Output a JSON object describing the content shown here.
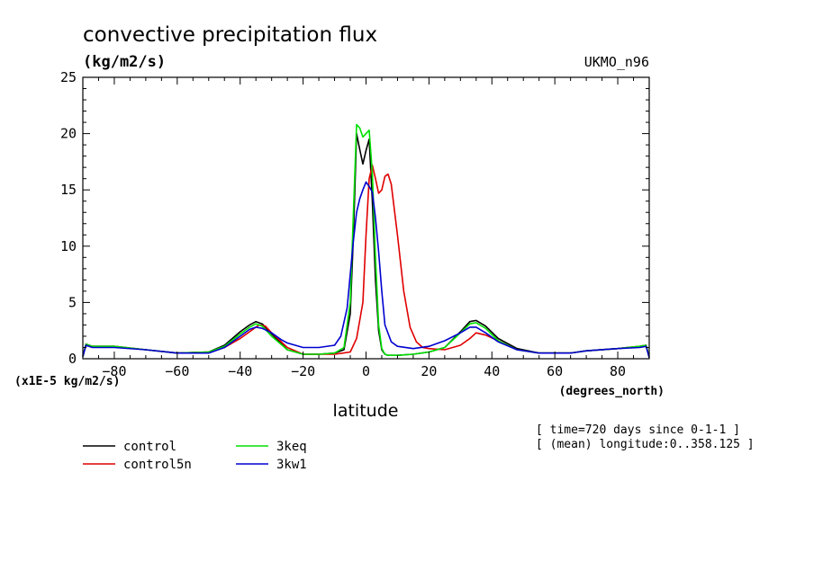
{
  "title": "convective precipitation flux",
  "units": "(kg/m2/s)",
  "model_label": "UKMO_n96",
  "scale_note": "(x1E-5 kg/m2/s)",
  "axis_units_x": "(degrees_north)",
  "xlabel": "latitude",
  "info_lines": [
    "[ time=720 days since 0-1-1 ]",
    "[ (mean) longitude:0..358.125 ]"
  ],
  "colors": {
    "control": "#000000",
    "control5n": "#e00000",
    "3keq": "#00e000",
    "3kw1": "#0000d0"
  },
  "chart_data": {
    "type": "line",
    "xlim": [
      -90,
      90
    ],
    "ylim": [
      0,
      25
    ],
    "xticks": [
      -80,
      -60,
      -40,
      -20,
      0,
      20,
      40,
      60,
      80
    ],
    "yticks": [
      0,
      5,
      10,
      15,
      20,
      25
    ],
    "legend_placement": "bottom-left",
    "series": [
      {
        "name": "control",
        "x": [
          -90,
          -89,
          -87,
          -80,
          -70,
          -60,
          -50,
          -45,
          -40,
          -37,
          -35,
          -33,
          -30,
          -25,
          -20,
          -15,
          -10,
          -7,
          -5,
          -4,
          -3,
          -2,
          -1,
          0,
          1,
          2,
          3,
          4,
          5,
          6,
          7,
          8,
          10,
          15,
          20,
          25,
          30,
          33,
          35,
          38,
          42,
          48,
          55,
          60,
          65,
          70,
          80,
          87,
          89,
          90
        ],
        "y": [
          0.2,
          1.3,
          1.1,
          1.1,
          0.8,
          0.5,
          0.6,
          1.2,
          2.4,
          3.0,
          3.3,
          3.1,
          2.2,
          0.8,
          0.4,
          0.4,
          0.5,
          0.8,
          4.0,
          11.0,
          20.0,
          18.6,
          17.3,
          18.5,
          19.5,
          14.0,
          7.0,
          2.5,
          0.8,
          0.4,
          0.3,
          0.3,
          0.3,
          0.4,
          0.6,
          1.0,
          2.4,
          3.3,
          3.4,
          2.9,
          1.8,
          0.9,
          0.5,
          0.5,
          0.5,
          0.7,
          0.9,
          1.1,
          1.2,
          0.1
        ]
      },
      {
        "name": "control5n",
        "x": [
          -90,
          -89,
          -87,
          -80,
          -70,
          -60,
          -50,
          -45,
          -40,
          -37,
          -34,
          -32,
          -30,
          -25,
          -20,
          -15,
          -10,
          -5,
          -3,
          -1,
          0,
          1,
          2,
          3,
          4,
          5,
          6,
          7,
          8,
          10,
          12,
          14,
          16,
          18,
          20,
          25,
          30,
          33,
          35,
          38,
          42,
          48,
          55,
          60,
          65,
          70,
          80,
          87,
          89,
          90
        ],
        "y": [
          0.2,
          1.3,
          1.1,
          1.1,
          0.8,
          0.5,
          0.6,
          1.0,
          1.8,
          2.4,
          3.0,
          2.9,
          2.3,
          1.0,
          0.4,
          0.4,
          0.4,
          0.6,
          1.8,
          5.0,
          11.0,
          16.0,
          17.2,
          16.0,
          14.7,
          15.0,
          16.2,
          16.4,
          15.5,
          11.0,
          6.0,
          2.8,
          1.5,
          1.0,
          0.9,
          0.8,
          1.2,
          1.8,
          2.3,
          2.1,
          1.6,
          0.8,
          0.5,
          0.5,
          0.5,
          0.7,
          0.9,
          1.1,
          1.2,
          0.1
        ]
      },
      {
        "name": "3keq",
        "x": [
          -90,
          -89,
          -87,
          -80,
          -70,
          -60,
          -50,
          -45,
          -40,
          -37,
          -35,
          -33,
          -30,
          -25,
          -20,
          -15,
          -10,
          -7,
          -5,
          -4,
          -3,
          -2,
          -1,
          0,
          1,
          2,
          3,
          4,
          5,
          6,
          7,
          8,
          10,
          15,
          20,
          25,
          30,
          33,
          35,
          38,
          42,
          48,
          55,
          60,
          65,
          70,
          80,
          87,
          89,
          90
        ],
        "y": [
          0.2,
          1.3,
          1.1,
          1.1,
          0.8,
          0.5,
          0.6,
          1.1,
          2.2,
          2.8,
          3.1,
          2.9,
          2.0,
          0.8,
          0.4,
          0.4,
          0.5,
          1.0,
          5.0,
          13.0,
          20.8,
          20.5,
          19.7,
          20.0,
          20.3,
          16.5,
          9.0,
          3.0,
          0.9,
          0.4,
          0.3,
          0.3,
          0.3,
          0.4,
          0.6,
          1.0,
          2.3,
          3.1,
          3.2,
          2.7,
          1.6,
          0.8,
          0.5,
          0.5,
          0.5,
          0.7,
          0.9,
          1.1,
          1.2,
          0.1
        ]
      },
      {
        "name": "3kw1",
        "x": [
          -90,
          -89,
          -87,
          -80,
          -70,
          -60,
          -50,
          -45,
          -40,
          -37,
          -35,
          -33,
          -30,
          -27,
          -25,
          -20,
          -15,
          -10,
          -8,
          -6,
          -5,
          -4,
          -3,
          -2,
          -1,
          0,
          1,
          2,
          3,
          4,
          5,
          6,
          8,
          10,
          15,
          20,
          25,
          30,
          33,
          35,
          38,
          42,
          48,
          55,
          60,
          65,
          70,
          80,
          87,
          89,
          90
        ],
        "y": [
          0.2,
          1.2,
          1.0,
          1.0,
          0.8,
          0.5,
          0.5,
          1.0,
          2.0,
          2.6,
          2.8,
          2.7,
          2.3,
          1.7,
          1.4,
          1.0,
          1.0,
          1.2,
          2.0,
          4.5,
          7.5,
          10.5,
          13.0,
          14.2,
          15.0,
          15.7,
          15.3,
          14.8,
          12.5,
          9.5,
          6.0,
          3.0,
          1.5,
          1.1,
          0.9,
          1.1,
          1.6,
          2.3,
          2.8,
          2.8,
          2.3,
          1.5,
          0.8,
          0.5,
          0.5,
          0.5,
          0.7,
          0.9,
          1.0,
          1.1,
          0.1
        ]
      }
    ]
  }
}
